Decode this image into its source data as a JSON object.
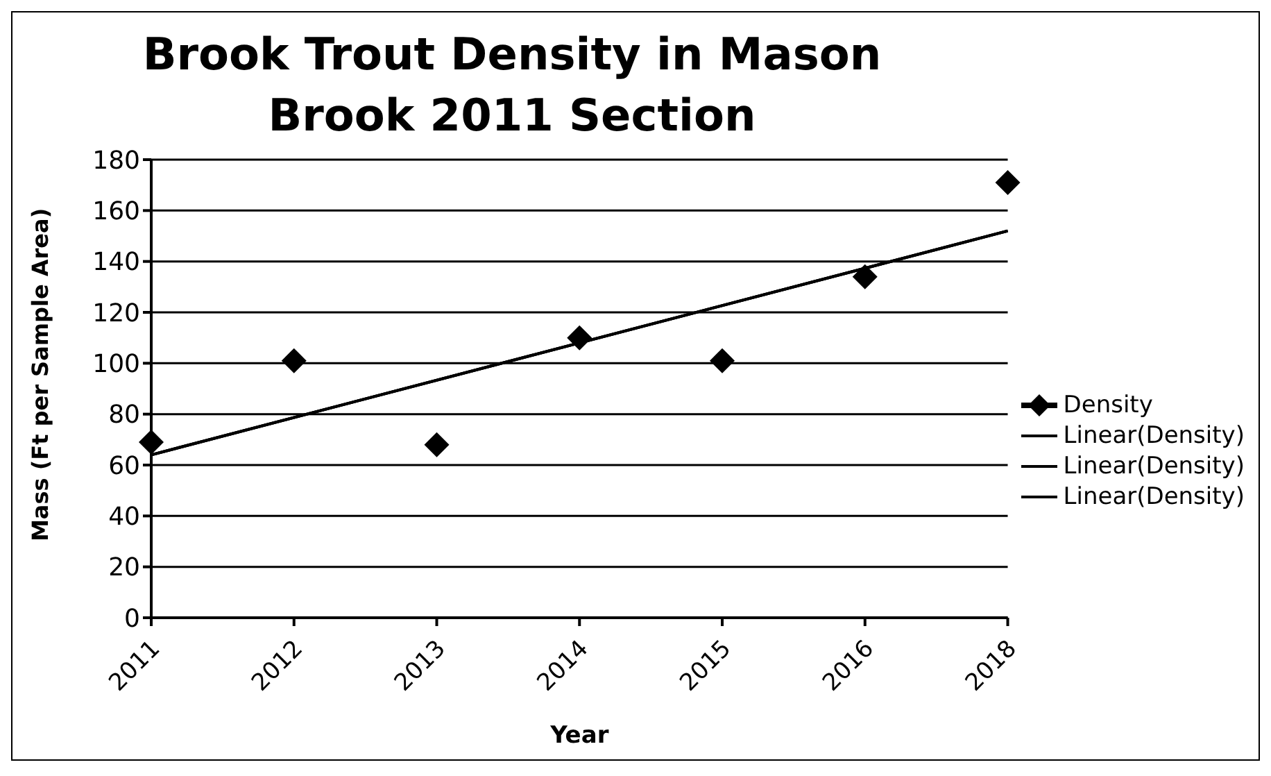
{
  "chart_data": {
    "type": "scatter",
    "title": "Brook Trout Density in Mason Brook 2011 Section",
    "xlabel": "Year",
    "ylabel": "Mass (Ft per Sample  Area)",
    "categories": [
      "2011",
      "2012",
      "2013",
      "2014",
      "2015",
      "2016",
      "2018"
    ],
    "series": [
      {
        "name": "Density",
        "color": "#000000",
        "marker": "diamond",
        "values": [
          69,
          101,
          68,
          110,
          101,
          134,
          171
        ]
      },
      {
        "name": "Linear(Density)",
        "color": "#000000",
        "type": "line",
        "values": [
          64,
          null,
          null,
          null,
          null,
          null,
          152
        ]
      },
      {
        "name": "Linear(Density)",
        "color": "#000000",
        "type": "line",
        "values": [
          64,
          null,
          null,
          null,
          null,
          null,
          152
        ]
      },
      {
        "name": "Linear(Density)",
        "color": "#000000",
        "type": "line",
        "values": [
          64,
          null,
          null,
          null,
          null,
          null,
          152
        ]
      }
    ],
    "ylim": [
      0,
      180
    ],
    "yticks": [
      0,
      20,
      40,
      60,
      80,
      100,
      120,
      140,
      160,
      180
    ],
    "grid": "y",
    "legend": "right",
    "line_style": "solid"
  }
}
